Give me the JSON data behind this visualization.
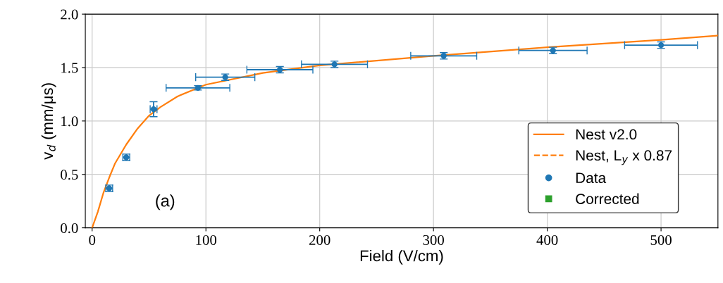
{
  "chart_data": {
    "type": "line",
    "xlabel": "Field (V/cm)",
    "ylabel": "v$_{d}$ (mm/μs)",
    "xlim": [
      -6,
      550
    ],
    "xticks": [
      0,
      100,
      200,
      300,
      400,
      500
    ],
    "ylim": [
      0,
      2.0
    ],
    "yticks": [
      {
        "value": 0,
        "label": "0.0"
      },
      0.5,
      {
        "value": 1,
        "label": "1.0"
      },
      1.5,
      {
        "value": 2,
        "label": "2.0"
      }
    ],
    "grid": true,
    "legend": "right",
    "annotations": [
      "(a)"
    ],
    "series": [
      {
        "name": "Nest v2.0",
        "color": "#ff7f0e",
        "line_style": "solid",
        "marker": "none",
        "x": [
          0,
          5,
          10,
          15,
          20,
          30,
          40,
          50,
          60,
          75,
          100,
          150,
          200,
          300,
          400,
          500,
          550
        ],
        "values": [
          0.0,
          0.15,
          0.33,
          0.47,
          0.6,
          0.78,
          0.93,
          1.05,
          1.13,
          1.23,
          1.34,
          1.45,
          1.52,
          1.61,
          1.69,
          1.76,
          1.8
        ]
      },
      {
        "name": "Nest, L$_{y}$ x 0.87",
        "type": "line",
        "color": "#ff7f0e",
        "line_style": "dashed",
        "marker": "none"
      },
      {
        "name": "Data",
        "type": "scatter",
        "color": "#1f77b4",
        "marker": "circle",
        "x": [
          15,
          30,
          54,
          93,
          117,
          165,
          213,
          309,
          405,
          500
        ],
        "values": [
          0.37,
          0.66,
          1.11,
          1.31,
          1.41,
          1.48,
          1.53,
          1.61,
          1.66,
          1.71
        ],
        "errors": [
          0.03,
          0.03,
          0.07,
          0.02,
          0.03,
          0.03,
          0.03,
          0.03,
          0.03,
          0.03
        ],
        "xerrors": [
          3,
          3,
          3,
          28,
          26,
          29,
          29,
          29,
          30,
          32
        ]
      },
      {
        "name": "Corrected",
        "type": "scatter",
        "color": "#2ca02c",
        "marker": "square"
      }
    ]
  }
}
